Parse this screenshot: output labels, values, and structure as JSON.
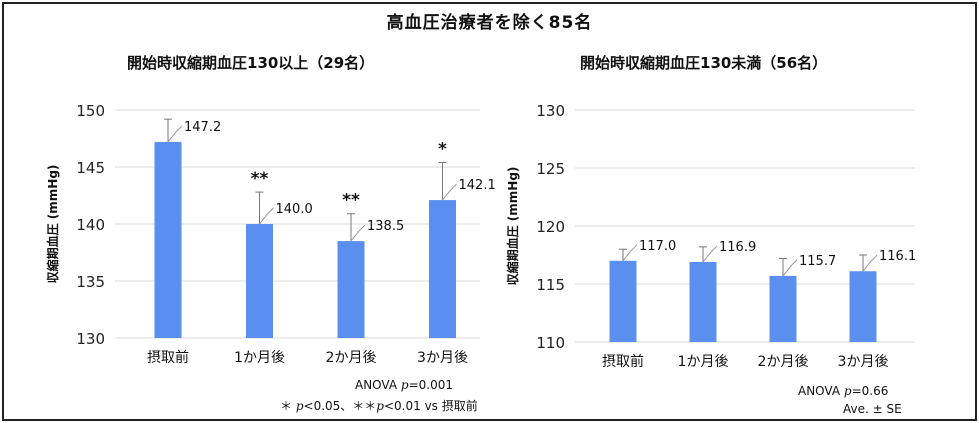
{
  "title": "高血圧治療者を除く85名",
  "bar_color": "#5B8FEF",
  "charts": [
    {
      "title": "開始時収縮期血圧130以上（29名）",
      "anova_label": "ANOVA ",
      "anova_p": "p",
      "anova_rest": "=0.001",
      "footnote_a": "＊ ",
      "footnote_b": "p",
      "footnote_c": "<0.05、＊＊",
      "footnote_d": "p",
      "footnote_e": "<0.01 vs 摂取前"
    },
    {
      "title": "開始時収縮期血圧130未満（56名）",
      "anova_label": "ANOVA ",
      "anova_p": "p",
      "anova_rest": "=0.66",
      "footnote_plain": "Ave. ± SE"
    }
  ],
  "chart_data": [
    {
      "type": "bar",
      "categories": [
        "摂取前",
        "1か月後",
        "2か月後",
        "3か月後"
      ],
      "values": [
        147.2,
        140.0,
        138.5,
        142.1
      ],
      "value_labels": [
        "147.2",
        "140.0",
        "138.5",
        "142.1"
      ],
      "errors": [
        2.0,
        2.8,
        2.4,
        3.3
      ],
      "significance": [
        "",
        "**",
        "**",
        "*"
      ],
      "ylabel": "収縮期血圧 (mmHg)",
      "ylim": [
        130,
        150
      ],
      "yticks": [
        130,
        135,
        140,
        145,
        150
      ],
      "grid": true
    },
    {
      "type": "bar",
      "categories": [
        "摂取前",
        "1か月後",
        "2か月後",
        "3か月後"
      ],
      "values": [
        117.0,
        116.9,
        115.7,
        116.1
      ],
      "value_labels": [
        "117.0",
        "116.9",
        "115.7",
        "116.1"
      ],
      "errors": [
        1.0,
        1.3,
        1.5,
        1.4
      ],
      "significance": [
        "",
        "",
        "",
        ""
      ],
      "ylabel": "収縮期血圧 (mmHg)",
      "ylim": [
        110,
        130
      ],
      "yticks": [
        110,
        115,
        120,
        125,
        130
      ],
      "grid": true
    }
  ]
}
